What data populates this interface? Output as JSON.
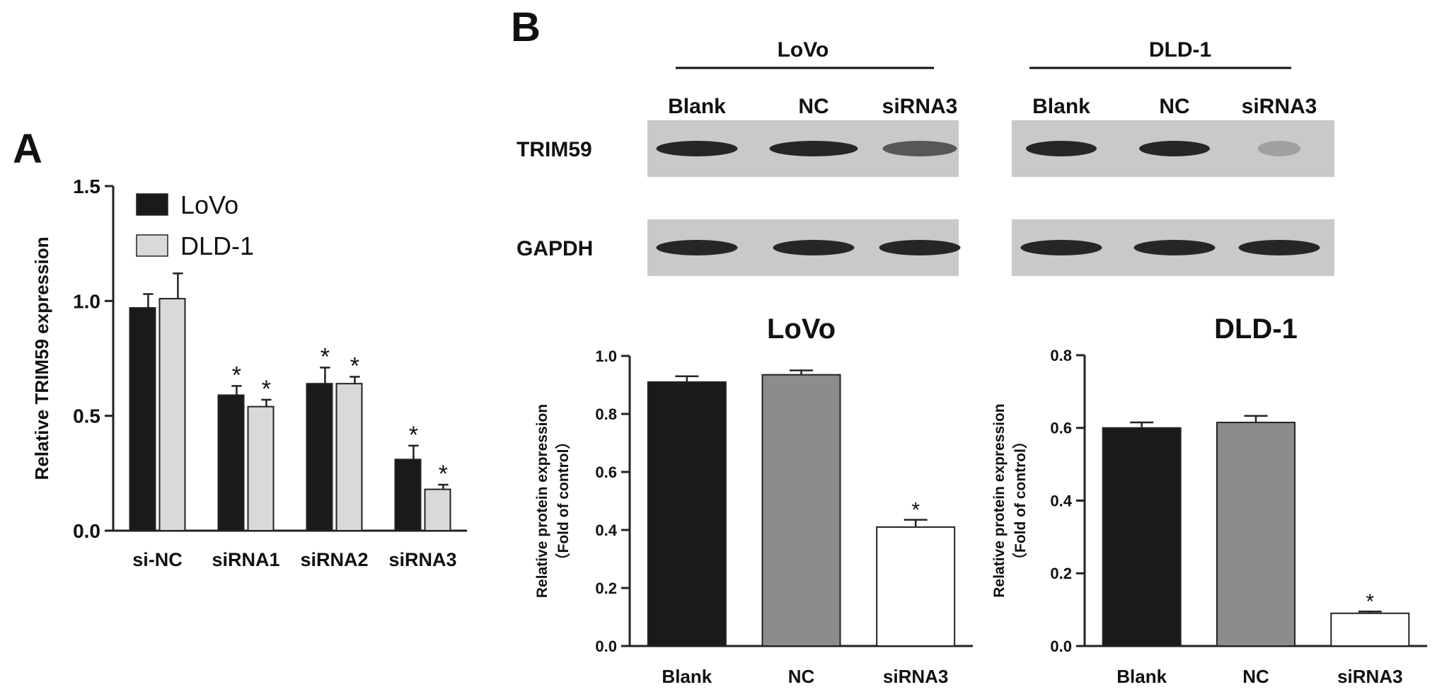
{
  "panels": {
    "a_label": "A",
    "b_label": "B"
  },
  "blot": {
    "groups": [
      {
        "name": "LoVo",
        "lanes": [
          "Blank",
          "NC",
          "siRNA3"
        ]
      },
      {
        "name": "DLD-1",
        "lanes": [
          "Blank",
          "NC",
          "siRNA3"
        ]
      }
    ],
    "rows": [
      "TRIM59",
      "GAPDH"
    ],
    "colors": {
      "membrane": "#c9c9c9",
      "band": "#262626"
    }
  },
  "chart_data": [
    {
      "type": "bar",
      "panel": "A",
      "title": "",
      "xlabel": "",
      "ylabel": "Relative  TRIM59 expression",
      "categories": [
        "si-NC",
        "siRNA1",
        "siRNA2",
        "siRNA3"
      ],
      "series": [
        {
          "name": "LoVo",
          "color": "#1a1a1a",
          "values": [
            0.97,
            0.59,
            0.64,
            0.31
          ],
          "errors": [
            0.06,
            0.04,
            0.07,
            0.06
          ],
          "significant": [
            false,
            true,
            true,
            true
          ]
        },
        {
          "name": "DLD-1",
          "color": "#d9d9d9",
          "values": [
            1.01,
            0.54,
            0.64,
            0.18
          ],
          "errors": [
            0.11,
            0.03,
            0.03,
            0.02
          ],
          "significant": [
            false,
            true,
            true,
            true
          ]
        }
      ],
      "ylim": [
        0,
        1.5
      ],
      "yticks": [
        "0.0",
        "0.5",
        "1.0",
        "1.5"
      ],
      "legend": "top-left",
      "grid": false,
      "annotation": "*"
    },
    {
      "type": "bar",
      "panel": "B",
      "title": "LoVo",
      "xlabel": "",
      "ylabel": "Relative protein expression",
      "ylabel2": "（Fold of control）",
      "categories": [
        "Blank",
        "NC",
        "siRNA3"
      ],
      "values": [
        0.91,
        0.935,
        0.41
      ],
      "errors": [
        0.02,
        0.015,
        0.025
      ],
      "colors": [
        "#1a1a1a",
        "#8c8c8c",
        "#ffffff"
      ],
      "significant": [
        false,
        false,
        true
      ],
      "ylim": [
        0,
        1.0
      ],
      "yticks": [
        "0.0",
        "0.2",
        "0.4",
        "0.6",
        "0.8",
        "1.0"
      ],
      "grid": false,
      "annotation": "*"
    },
    {
      "type": "bar",
      "panel": "B",
      "title": "DLD-1",
      "xlabel": "",
      "ylabel": "Relative protein expression",
      "ylabel2": "（Fold of control）",
      "categories": [
        "Blank",
        "NC",
        "siRNA3"
      ],
      "values": [
        0.6,
        0.615,
        0.09
      ],
      "errors": [
        0.015,
        0.018,
        0.005
      ],
      "colors": [
        "#1a1a1a",
        "#8c8c8c",
        "#ffffff"
      ],
      "significant": [
        false,
        false,
        true
      ],
      "ylim": [
        0,
        0.8
      ],
      "yticks": [
        "0.0",
        "0.2",
        "0.4",
        "0.6",
        "0.8"
      ],
      "grid": false,
      "annotation": "*"
    }
  ]
}
